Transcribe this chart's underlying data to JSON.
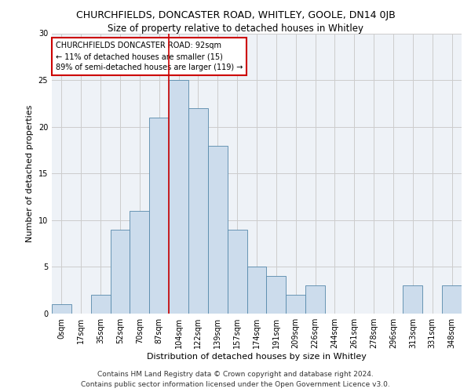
{
  "title1": "CHURCHFIELDS, DONCASTER ROAD, WHITLEY, GOOLE, DN14 0JB",
  "title2": "Size of property relative to detached houses in Whitley",
  "xlabel": "Distribution of detached houses by size in Whitley",
  "ylabel": "Number of detached properties",
  "bin_labels": [
    "0sqm",
    "17sqm",
    "35sqm",
    "52sqm",
    "70sqm",
    "87sqm",
    "104sqm",
    "122sqm",
    "139sqm",
    "157sqm",
    "174sqm",
    "191sqm",
    "209sqm",
    "226sqm",
    "244sqm",
    "261sqm",
    "278sqm",
    "296sqm",
    "313sqm",
    "331sqm",
    "348sqm"
  ],
  "bar_heights": [
    1,
    0,
    2,
    9,
    11,
    21,
    25,
    22,
    18,
    9,
    5,
    4,
    2,
    3,
    0,
    0,
    0,
    0,
    3,
    0,
    3
  ],
  "bar_color": "#ccdcec",
  "bar_edge_color": "#5588aa",
  "vline_x": 5.5,
  "vline_color": "#cc0000",
  "ylim": [
    0,
    30
  ],
  "yticks": [
    0,
    5,
    10,
    15,
    20,
    25,
    30
  ],
  "grid_color": "#cccccc",
  "background_color": "#eef2f7",
  "annotation_text": "CHURCHFIELDS DONCASTER ROAD: 92sqm\n← 11% of detached houses are smaller (15)\n89% of semi-detached houses are larger (119) →",
  "annotation_box_color": "#ffffff",
  "annotation_box_edge": "#cc0000",
  "footer1": "Contains HM Land Registry data © Crown copyright and database right 2024.",
  "footer2": "Contains public sector information licensed under the Open Government Licence v3.0.",
  "title1_fontsize": 9,
  "title2_fontsize": 8.5,
  "xlabel_fontsize": 8,
  "ylabel_fontsize": 8,
  "annot_fontsize": 7,
  "tick_fontsize": 7,
  "footer_fontsize": 6.5
}
